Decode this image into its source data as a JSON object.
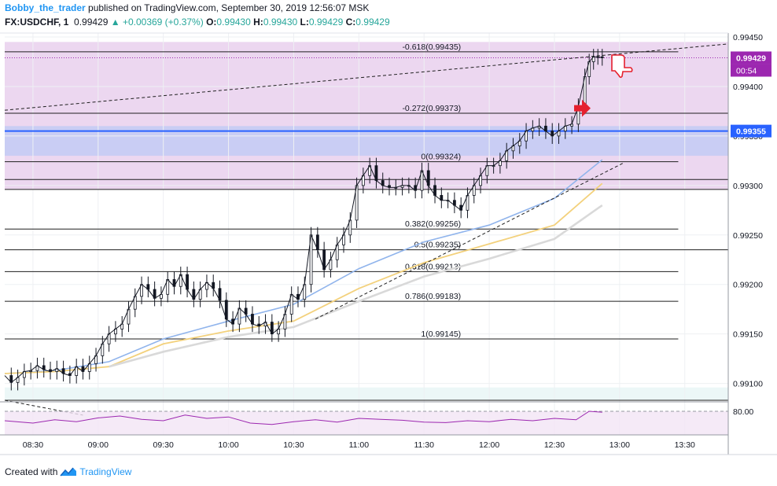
{
  "header": {
    "author": "Bobby_the_trader",
    "published": "published on TradingView.com, September 30, 2019 12:56:07 MSK",
    "symbol": "FX:USDCHF, 1",
    "last": "0.99429",
    "change": "▲ +0.00369 (+0.37%)",
    "o_label": "O:",
    "o": "0.99430",
    "h_label": "H:",
    "h": "0.99430",
    "l_label": "L:",
    "l": "0.99429",
    "c_label": "C:",
    "c": "0.99429"
  },
  "footer": {
    "created_with": "Created with",
    "brand": "TradingView"
  },
  "colors": {
    "up": "#26a69a",
    "zone": "#e1bee7",
    "zone_blue": "#b3c7f7",
    "support": "#2962ff",
    "ma_blue": "#90b4ec",
    "ma_yellow": "#f3d17c",
    "ma_gray": "#d9d9d9",
    "rsi": "#9c27b0",
    "price_badge": "#9c27b0",
    "support_badge": "#2962ff",
    "arrow": "#e5202e"
  },
  "price_badges": {
    "last": "0.99429",
    "countdown": "00:54",
    "support": "0.99355"
  },
  "fib_labels": [
    {
      "label": "-0.618(0.99435)",
      "price": 0.99435
    },
    {
      "label": "-0.272(0.99373)",
      "price": 0.99373
    },
    {
      "label": "0(0.99324)",
      "price": 0.99324
    },
    {
      "label": "0.382(0.99256)",
      "price": 0.99256
    },
    {
      "label": "0.5(0.99235)",
      "price": 0.99235
    },
    {
      "label": "0.618(0.99213)",
      "price": 0.99213
    },
    {
      "label": "0.786(0.99183)",
      "price": 0.99183
    },
    {
      "label": "1(0.99145)",
      "price": 0.99145
    }
  ],
  "rsi_axis_label": "80.00",
  "chart_data": {
    "type": "line",
    "title": "FX:USDCHF, 1",
    "subtitle": "published on TradingView.com, September 30, 2019 12:56:07 MSK",
    "x_tick_labels": [
      "08:30",
      "09:00",
      "09:30",
      "10:00",
      "10:30",
      "11:00",
      "11:30",
      "12:00",
      "12:30",
      "13:00",
      "13:30"
    ],
    "x_ticks_minutes": [
      510,
      540,
      570,
      600,
      630,
      660,
      690,
      720,
      750,
      780,
      810
    ],
    "xlim_minutes": [
      497,
      830
    ],
    "y_tick_labels": [
      "0.99450",
      "0.99400",
      "0.99350",
      "0.99300",
      "0.99250",
      "0.99200",
      "0.99150",
      "0.99100"
    ],
    "y_ticks": [
      0.9945,
      0.994,
      0.9935,
      0.993,
      0.9925,
      0.992,
      0.9915,
      0.991
    ],
    "ylim": [
      0.99083,
      0.99454
    ],
    "grid": true,
    "horizontal_lines": [
      0.99435,
      0.99373,
      0.99324,
      0.99306,
      0.99296,
      0.99256,
      0.99235,
      0.99213,
      0.99183,
      0.99145,
      0.99083
    ],
    "support_level": 0.99355,
    "series": [
      {
        "type": "close",
        "x_minutes": [
          497,
          500,
          503,
          506,
          509,
          512,
          515,
          518,
          521,
          524,
          527,
          530,
          533,
          536,
          539,
          542,
          545,
          548,
          551,
          554,
          557,
          560,
          563,
          566,
          569,
          572,
          575,
          578,
          581,
          584,
          587,
          590,
          593,
          596,
          599,
          602,
          605,
          608,
          611,
          614,
          617,
          620,
          623,
          626,
          629,
          632,
          635,
          638,
          641,
          644,
          647,
          650,
          653,
          656,
          659,
          662,
          665,
          668,
          671,
          674,
          677,
          680,
          683,
          686,
          689,
          692,
          695,
          698,
          701,
          704,
          707,
          710,
          713,
          716,
          719,
          722,
          725,
          728,
          731,
          734,
          737,
          740,
          743,
          746,
          749,
          752,
          755,
          758,
          761,
          764,
          766,
          768,
          770,
          772
        ],
        "values": [
          0.99108,
          0.99101,
          0.99106,
          0.99112,
          0.99113,
          0.99118,
          0.99114,
          0.99112,
          0.99115,
          0.9911,
          0.99108,
          0.99117,
          0.99112,
          0.9912,
          0.99128,
          0.9914,
          0.9915,
          0.99155,
          0.9916,
          0.99175,
          0.99188,
          0.992,
          0.99195,
          0.99186,
          0.9919,
          0.99205,
          0.99198,
          0.9921,
          0.99195,
          0.99185,
          0.99195,
          0.99202,
          0.99196,
          0.99184,
          0.99165,
          0.9916,
          0.99176,
          0.9917,
          0.9916,
          0.99158,
          0.99162,
          0.9915,
          0.99155,
          0.9917,
          0.9919,
          0.99185,
          0.992,
          0.9925,
          0.99235,
          0.99215,
          0.99225,
          0.9924,
          0.9925,
          0.99265,
          0.993,
          0.9931,
          0.9932,
          0.99305,
          0.993,
          0.99298,
          0.99298,
          0.993,
          0.993,
          0.99295,
          0.99315,
          0.993,
          0.9929,
          0.99285,
          0.99285,
          0.9928,
          0.99275,
          0.9929,
          0.993,
          0.9931,
          0.9932,
          0.9932,
          0.99325,
          0.99335,
          0.9934,
          0.99345,
          0.99355,
          0.99358,
          0.9936,
          0.99355,
          0.9935,
          0.99355,
          0.9936,
          0.99362,
          0.9938,
          0.9941,
          0.99425,
          0.9943,
          0.9943,
          0.99429
        ]
      },
      {
        "type": "moving-average",
        "x_minutes": [
          497,
          520,
          545,
          570,
          600,
          630,
          660,
          690,
          720,
          750,
          772
        ],
        "values": [
          0.9911,
          0.99113,
          0.99122,
          0.99145,
          0.99163,
          0.9918,
          0.99216,
          0.99243,
          0.9926,
          0.99287,
          0.99326
        ]
      },
      {
        "type": "moving-average",
        "x_minutes": [
          497,
          520,
          545,
          570,
          600,
          630,
          660,
          690,
          720,
          750,
          772
        ],
        "values": [
          0.9911,
          0.99112,
          0.99117,
          0.9914,
          0.99153,
          0.99163,
          0.99196,
          0.99222,
          0.99241,
          0.9926,
          0.99302
        ]
      },
      {
        "type": "moving-average",
        "x_minutes": [
          545,
          570,
          600,
          630,
          660,
          690,
          720,
          750,
          772
        ],
        "values": [
          0.99117,
          0.99132,
          0.99147,
          0.99157,
          0.99183,
          0.99208,
          0.99226,
          0.99246,
          0.9928
        ]
      }
    ],
    "trendlines": [
      {
        "x_minutes": [
          497,
          830
        ],
        "values": [
          0.99376,
          0.99443
        ]
      },
      {
        "x_minutes": [
          640,
          782
        ],
        "values": [
          0.99165,
          0.99323
        ]
      },
      {
        "x_minutes": [
          497,
          533
        ],
        "values": [
          0.99083,
          0.99068
        ]
      }
    ],
    "rsi": {
      "level": 80.0,
      "x_minutes": [
        497,
        510,
        520,
        530,
        540,
        550,
        560,
        570,
        580,
        590,
        600,
        610,
        620,
        630,
        640,
        650,
        660,
        670,
        680,
        690,
        700,
        710,
        720,
        730,
        740,
        750,
        760,
        766,
        772
      ],
      "values": [
        60,
        55,
        62,
        58,
        66,
        70,
        63,
        60,
        72,
        65,
        68,
        55,
        52,
        58,
        62,
        57,
        65,
        63,
        61,
        57,
        56,
        60,
        58,
        63,
        60,
        65,
        62,
        80,
        78
      ]
    }
  }
}
